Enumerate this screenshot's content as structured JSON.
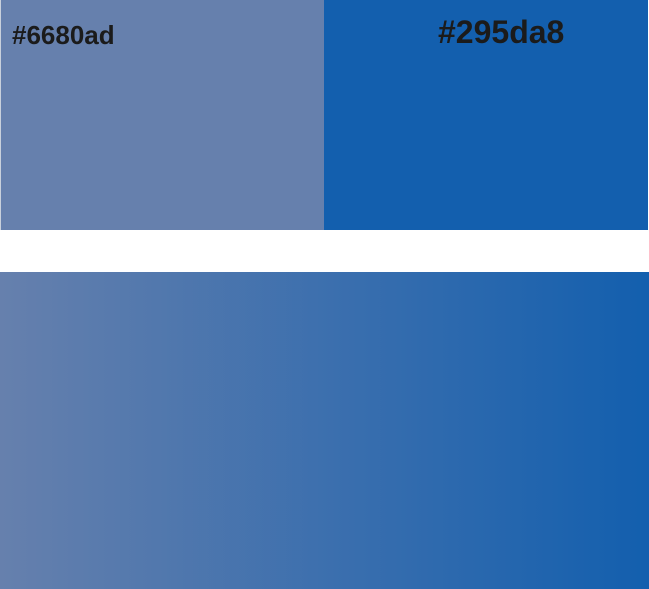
{
  "swatches": [
    {
      "label": "#6680ad",
      "color": "#6680ad"
    },
    {
      "label": "#295da8",
      "color": "#135fae"
    }
  ],
  "gradient": {
    "from": "#6680ad",
    "to": "#135fae",
    "direction": "to right"
  }
}
